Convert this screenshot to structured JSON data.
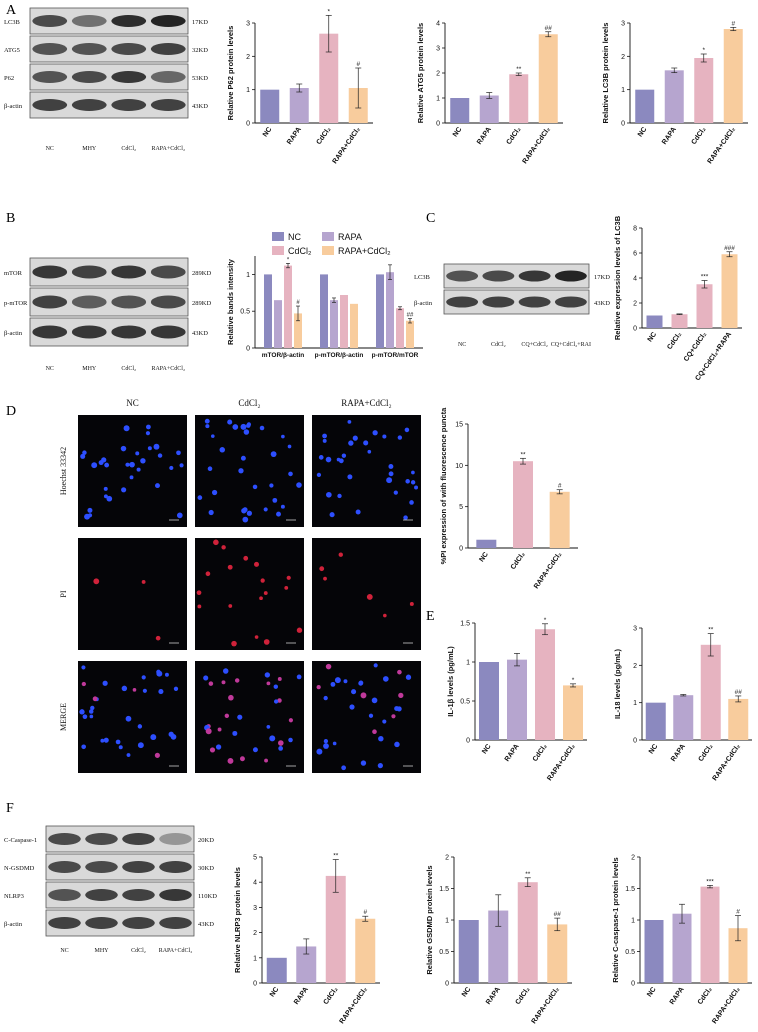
{
  "colors": {
    "NC": "#8b89bf",
    "RAPA": "#b6a5cf",
    "CdCl2": "#e6b3c0",
    "RAPA_CdCl2": "#f8cc9d",
    "CQ_CdCl2": "#e6b3c0",
    "CQ_CdCl2_RAPA": "#f8cc9d"
  },
  "panels": {
    "A": "A",
    "B": "B",
    "C": "C",
    "D": "D",
    "E": "E",
    "F": "F"
  },
  "blots": {
    "A": {
      "rows": [
        {
          "label": "LC3B",
          "kd": "17KD"
        },
        {
          "label": "ATG5",
          "kd": "32KD"
        },
        {
          "label": "P62",
          "kd": "53KD"
        },
        {
          "label": "β-actin",
          "kd": "43KD"
        }
      ],
      "lanes": [
        "NC",
        "MHY",
        "CdCl₂",
        "RAPA+CdCl₂"
      ]
    },
    "B": {
      "rows": [
        {
          "label": "mTOR",
          "kd": "289KD"
        },
        {
          "label": "p-mTOR",
          "kd": "289KD"
        },
        {
          "label": "β-actin",
          "kd": "43KD"
        }
      ],
      "lanes": [
        "NC",
        "MHY",
        "CdCl₂",
        "RAPA+CdCl₂"
      ]
    },
    "C": {
      "rows": [
        {
          "label": "LC3B",
          "kd": "17KD"
        },
        {
          "label": "β-actin",
          "kd": "43KD"
        }
      ],
      "lanes": [
        "NC",
        "CdCl₂",
        "CQ+CdCl₂",
        "CQ+CdCl₂+RAI"
      ]
    },
    "F": {
      "rows": [
        {
          "label": "C-Caspase-1",
          "kd": "20KD"
        },
        {
          "label": "N-GSDMD",
          "kd": "30KD"
        },
        {
          "label": "NLRP3",
          "kd": "110KD"
        },
        {
          "label": "β-actin",
          "kd": "43KD"
        }
      ],
      "lanes": [
        "NC",
        "MHY",
        "CdCl₂",
        "RAPA+CdCl₂"
      ]
    }
  },
  "microscopy": {
    "columns": [
      "NC",
      "CdCl₂",
      "RAPA+CdCl₂"
    ],
    "rows": [
      "Hoechst 33342",
      "PI",
      "MERGE"
    ]
  },
  "chart_data": [
    {
      "id": "A_P62",
      "type": "bar",
      "categories": [
        "NC",
        "RAPA",
        "CdCl₂",
        "RAPA+CdCl₂"
      ],
      "values": [
        1.0,
        1.05,
        2.68,
        1.05
      ],
      "errors": [
        0,
        0.12,
        0.55,
        0.6
      ],
      "sig": [
        "",
        "",
        "*",
        "#"
      ],
      "ylabel": "Relative P62 protein levels",
      "ylim": [
        0,
        3
      ],
      "ticks": [
        0,
        1,
        2,
        3
      ]
    },
    {
      "id": "A_ATG5",
      "type": "bar",
      "categories": [
        "NC",
        "RAPA",
        "CdCl₂",
        "RAPA+CdCl₂"
      ],
      "values": [
        1.0,
        1.1,
        1.95,
        3.55
      ],
      "errors": [
        0,
        0.12,
        0.05,
        0.1
      ],
      "sig": [
        "",
        "",
        "**",
        "##"
      ],
      "ylabel": "Relative ATG5 protein levels",
      "ylim": [
        0,
        4
      ],
      "ticks": [
        0,
        1,
        2,
        3,
        4
      ]
    },
    {
      "id": "A_LC3B",
      "type": "bar",
      "categories": [
        "NC",
        "RAPA",
        "CdCl₂",
        "RAPA+CdCl₂"
      ],
      "values": [
        1.0,
        1.58,
        1.95,
        2.82
      ],
      "errors": [
        0,
        0.07,
        0.12,
        0.05
      ],
      "sig": [
        "",
        "",
        "*",
        "#"
      ],
      "ylabel": "Relative LC3B protein levels",
      "ylim": [
        0,
        3
      ],
      "ticks": [
        0,
        1,
        2,
        3
      ]
    },
    {
      "id": "B_bands",
      "type": "bar",
      "categories": [
        "mTOR/β-actin",
        "p-mTOR/β-actin",
        "p-mTOR/mTOR"
      ],
      "series": [
        {
          "name": "NC",
          "values": [
            1.0,
            1.0,
            1.0
          ],
          "errors": [
            0,
            0,
            0
          ],
          "sig": [
            "",
            "",
            ""
          ]
        },
        {
          "name": "RAPA",
          "values": [
            0.65,
            0.65,
            1.03
          ],
          "errors": [
            0,
            0.03,
            0.1
          ],
          "sig": [
            "",
            "",
            ""
          ]
        },
        {
          "name": "CdCl₂",
          "values": [
            1.12,
            0.72,
            0.54
          ],
          "errors": [
            0.03,
            0,
            0.02
          ],
          "sig": [
            "*",
            "",
            ""
          ]
        },
        {
          "name": "RAPA+CdCl₂",
          "values": [
            0.47,
            0.6,
            0.37
          ],
          "errors": [
            0.1,
            0,
            0.03
          ],
          "sig": [
            "#",
            "",
            "##"
          ]
        }
      ],
      "ylabel": "Relative bands intensity",
      "ylim": [
        0,
        1.25
      ],
      "ticks": [
        0,
        0.5,
        1.0
      ],
      "legend": "top"
    },
    {
      "id": "C_LC3B",
      "type": "bar",
      "categories": [
        "NC",
        "CdCl₂",
        "CQ+CdCl₂",
        "CQ+CdCl₂+RAPA"
      ],
      "values": [
        1.0,
        1.1,
        3.5,
        5.9
      ],
      "errors": [
        0,
        0.03,
        0.3,
        0.2
      ],
      "sig": [
        "",
        "",
        "***",
        "###"
      ],
      "ylabel": "Relative expression levels of LC3B",
      "ylim": [
        0,
        8
      ],
      "ticks": [
        0,
        2,
        4,
        6,
        8
      ]
    },
    {
      "id": "D_PI",
      "type": "bar",
      "categories": [
        "NC",
        "CdCl₂",
        "RAPA+CdCl₂"
      ],
      "values": [
        1.0,
        10.5,
        6.8
      ],
      "errors": [
        0,
        0.35,
        0.25
      ],
      "sig": [
        "",
        "**",
        "#"
      ],
      "ylabel": "%PI expression of with fluorescence puncta",
      "ylim": [
        0,
        15
      ],
      "ticks": [
        0,
        5,
        10,
        15
      ]
    },
    {
      "id": "E_IL1b",
      "type": "bar",
      "categories": [
        "NC",
        "RAPA",
        "CdCl₂",
        "RAPA+CdCl₂"
      ],
      "values": [
        1.0,
        1.03,
        1.42,
        0.7
      ],
      "errors": [
        0,
        0.08,
        0.07,
        0.02
      ],
      "sig": [
        "",
        "",
        "*",
        "*"
      ],
      "ylabel": "IL-1β levels (pg/mL)",
      "ylim": [
        0,
        1.5
      ],
      "ticks": [
        0.0,
        0.5,
        1.0,
        1.5
      ]
    },
    {
      "id": "E_IL18",
      "type": "bar",
      "categories": [
        "NC",
        "RAPA",
        "CdCl₂",
        "RAPA+CdCl₂"
      ],
      "values": [
        1.0,
        1.2,
        2.55,
        1.1
      ],
      "errors": [
        0,
        0.02,
        0.3,
        0.08
      ],
      "sig": [
        "",
        "",
        "**",
        "##"
      ],
      "ylabel": "IL-18 levels (pg/mL)",
      "ylim": [
        0,
        3
      ],
      "ticks": [
        0,
        1,
        2,
        3
      ]
    },
    {
      "id": "F_NLRP3",
      "type": "bar",
      "categories": [
        "NC",
        "RAPA",
        "CdCl₂",
        "RAPA+CdCl₂"
      ],
      "values": [
        1.0,
        1.45,
        4.25,
        2.55
      ],
      "errors": [
        0,
        0.3,
        0.65,
        0.1
      ],
      "sig": [
        "",
        "",
        "**",
        "#"
      ],
      "ylabel": "Relative NLRP3 protein levels",
      "ylim": [
        0,
        5
      ],
      "ticks": [
        0,
        1,
        2,
        3,
        4,
        5
      ]
    },
    {
      "id": "F_GSDMD",
      "type": "bar",
      "categories": [
        "NC",
        "RAPA",
        "CdCl₂",
        "RAPA+CdCl₂"
      ],
      "values": [
        1.0,
        1.15,
        1.6,
        0.93
      ],
      "errors": [
        0,
        0.25,
        0.07,
        0.1
      ],
      "sig": [
        "",
        "",
        "**",
        "##"
      ],
      "ylabel": "Relative GSDMD protein levels",
      "ylim": [
        0,
        2.0
      ],
      "ticks": [
        0,
        0.5,
        1.0,
        1.5,
        2.0
      ]
    },
    {
      "id": "F_C_caspase1",
      "type": "bar",
      "categories": [
        "NC",
        "RAPA",
        "CdCl₂",
        "RAPA+CdCl₂"
      ],
      "values": [
        1.0,
        1.1,
        1.53,
        0.87
      ],
      "errors": [
        0,
        0.15,
        0.02,
        0.2
      ],
      "sig": [
        "",
        "",
        "***",
        "#"
      ],
      "ylabel": "Relative C-caspase-1 protein levels",
      "ylim": [
        0,
        2.0
      ],
      "ticks": [
        0.0,
        0.5,
        1.0,
        1.5,
        2.0
      ]
    }
  ]
}
